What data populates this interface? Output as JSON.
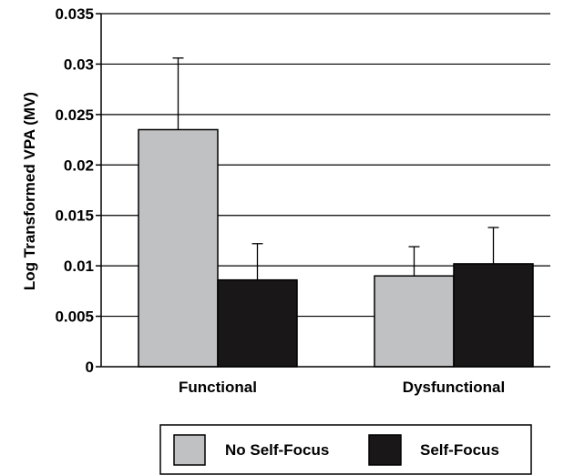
{
  "chart_data": {
    "type": "bar",
    "categories": [
      "Functional",
      "Dysfunctional"
    ],
    "series": [
      {
        "name": "No Self-Focus",
        "color": "#c0c1c3",
        "values": [
          0.0235,
          0.009
        ],
        "error": [
          0.0071,
          0.0029
        ]
      },
      {
        "name": "Self-Focus",
        "color": "#1a1718",
        "values": [
          0.0086,
          0.0102
        ],
        "error": [
          0.0036,
          0.0036
        ]
      }
    ],
    "title": "",
    "xlabel": "",
    "ylabel": "Log Transformed VPA (MV)",
    "ylim": [
      0,
      0.035
    ],
    "yticks": [
      0,
      0.005,
      0.01,
      0.015,
      0.02,
      0.025,
      0.03,
      0.035
    ],
    "ytick_labels": [
      "0",
      "0.005",
      "0.01",
      "0.015",
      "0.02",
      "0.025",
      "0.03",
      "0.035"
    ],
    "grid": "horizontal",
    "legend": "bottom"
  }
}
